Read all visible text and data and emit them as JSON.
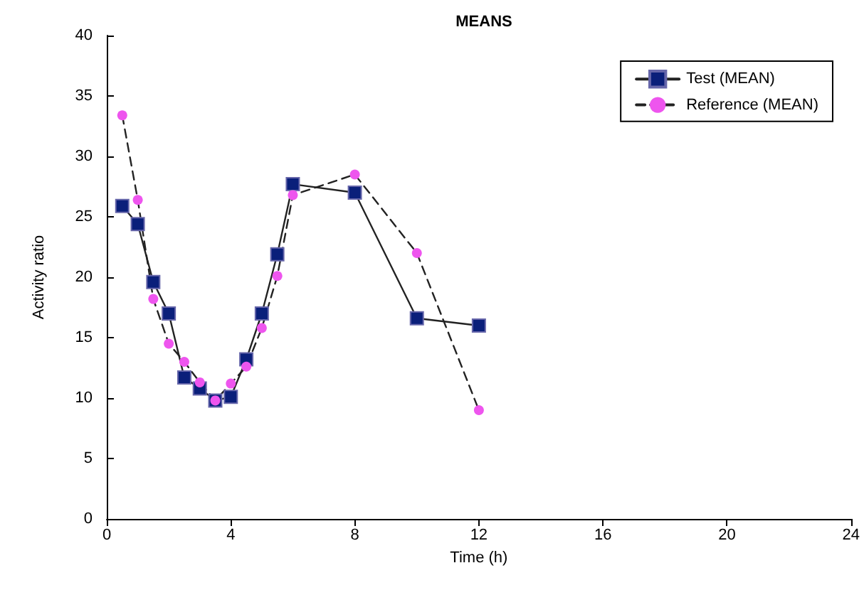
{
  "chart_data": {
    "type": "line",
    "title": "MEANS",
    "xlabel": "Time (h)",
    "ylabel": "Activity ratio",
    "xlim": [
      0,
      24
    ],
    "xticks": [
      0,
      4,
      8,
      12,
      16,
      20,
      24
    ],
    "ylim": [
      0,
      40
    ],
    "yticks": [
      0,
      5,
      10,
      15,
      20,
      25,
      30,
      35,
      40
    ],
    "grid": false,
    "legend": "top right",
    "series": [
      {
        "name": "Test (MEAN)",
        "color": "#0a1f7a",
        "marker": "square",
        "line_style": "solid",
        "x": [
          0.5,
          1,
          1.5,
          2,
          2.5,
          3,
          3.5,
          4,
          4.5,
          5,
          5.5,
          6,
          8,
          10,
          12
        ],
        "values": [
          25.9,
          24.4,
          19.6,
          17,
          11.7,
          10.8,
          9.8,
          10.1,
          13.2,
          17,
          21.9,
          27.7,
          27,
          16.6,
          16
        ]
      },
      {
        "name": "Reference (MEAN)",
        "color": "#ee55ee",
        "marker": "circle",
        "line_style": "dashed",
        "x": [
          0.5,
          1,
          1.5,
          2,
          2.5,
          3,
          3.5,
          4,
          4.5,
          5,
          5.5,
          6,
          8,
          10,
          12
        ],
        "values": [
          33.4,
          26.4,
          18.2,
          14.5,
          13,
          11.3,
          9.8,
          11.2,
          12.6,
          15.8,
          20.1,
          26.8,
          28.5,
          22,
          9
        ]
      }
    ]
  }
}
